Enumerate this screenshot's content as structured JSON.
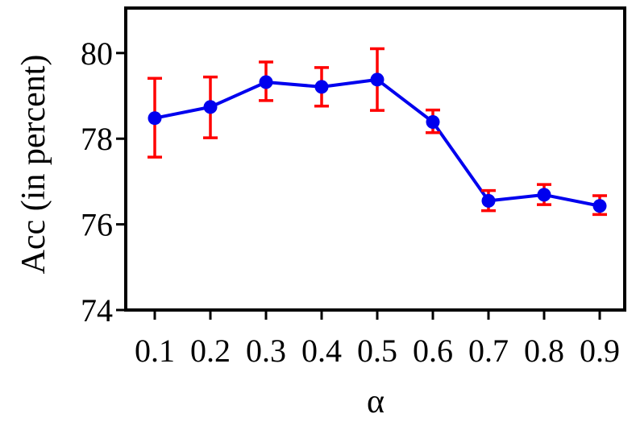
{
  "chart_data": {
    "type": "line",
    "title": "",
    "xlabel": "α",
    "ylabel": "Acc (in percent)",
    "categories": [
      "0.1",
      "0.2",
      "0.3",
      "0.4",
      "0.5",
      "0.6",
      "0.7",
      "0.8",
      "0.9"
    ],
    "series": [
      {
        "values": [
          78.48,
          78.74,
          79.32,
          79.21,
          79.38,
          78.39,
          76.55,
          76.69,
          76.43
        ],
        "error_low": [
          77.57,
          78.02,
          78.89,
          78.76,
          78.66,
          78.14,
          76.32,
          76.46,
          76.23
        ],
        "error_high": [
          79.41,
          79.44,
          79.79,
          79.66,
          80.1,
          78.67,
          76.79,
          76.93,
          76.67
        ],
        "line_color": "#0000ee",
        "marker_color": "#0000ee",
        "error_color": "#ff0000"
      }
    ],
    "yticks": [
      74,
      76,
      78,
      80
    ],
    "ylim": [
      74,
      81.05
    ],
    "grid": false,
    "legend": "none"
  }
}
